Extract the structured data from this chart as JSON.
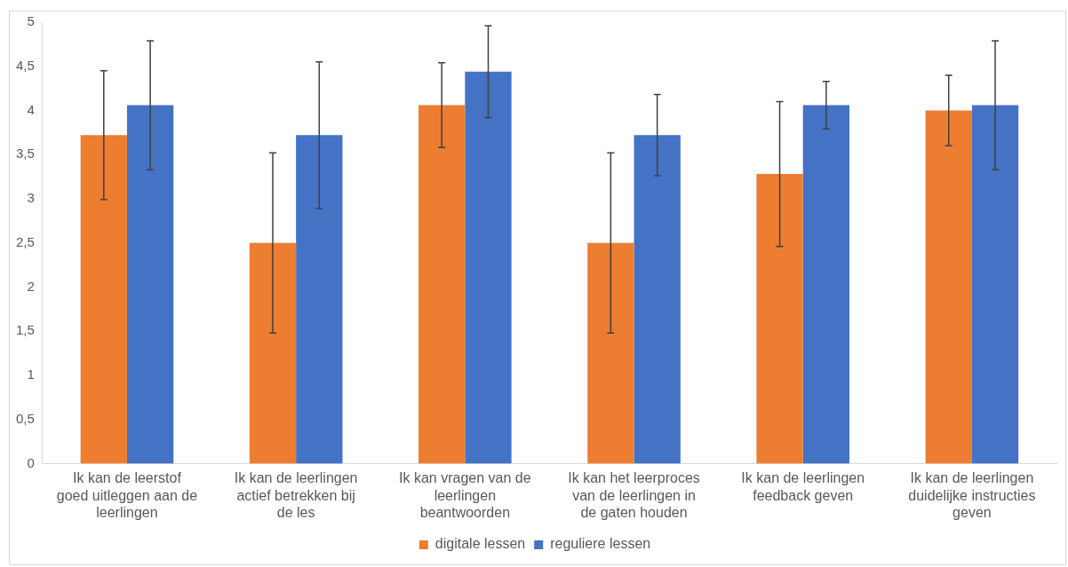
{
  "chart_data": {
    "type": "bar",
    "categories": [
      "Ik kan de leerstof goed uitleggen aan de leerlingen",
      "Ik kan de leerlingen actief betrekken bij de les",
      "Ik kan vragen van de leerlingen beantwoorden",
      "Ik kan het leerproces van de leerlingen in de gaten houden",
      "Ik kan de leerlingen feedback geven",
      "Ik kan de leerlingen duidelijke instructies geven"
    ],
    "series": [
      {
        "name": "digitale lessen",
        "color": "#ed7d31",
        "values": [
          3.72,
          2.5,
          4.06,
          2.5,
          3.28,
          4.0
        ],
        "errors": [
          0.73,
          1.02,
          0.48,
          1.02,
          0.82,
          0.4
        ]
      },
      {
        "name": "reguliere lessen",
        "color": "#4472c4",
        "values": [
          4.06,
          3.72,
          4.44,
          3.72,
          4.06,
          4.06
        ],
        "errors": [
          0.73,
          0.83,
          0.52,
          0.46,
          0.27,
          0.73
        ]
      }
    ],
    "ylim": [
      0,
      5
    ],
    "yticks": [
      0,
      {
        "value": 0.5,
        "label": "0,5"
      },
      1,
      {
        "value": 1.5,
        "label": "1,5"
      },
      2,
      {
        "value": 2.5,
        "label": "2,5"
      },
      3,
      {
        "value": 3.5,
        "label": "3,5"
      },
      4,
      {
        "value": 4.5,
        "label": "4,5"
      },
      5
    ],
    "grid": false,
    "legend": "bottom"
  }
}
